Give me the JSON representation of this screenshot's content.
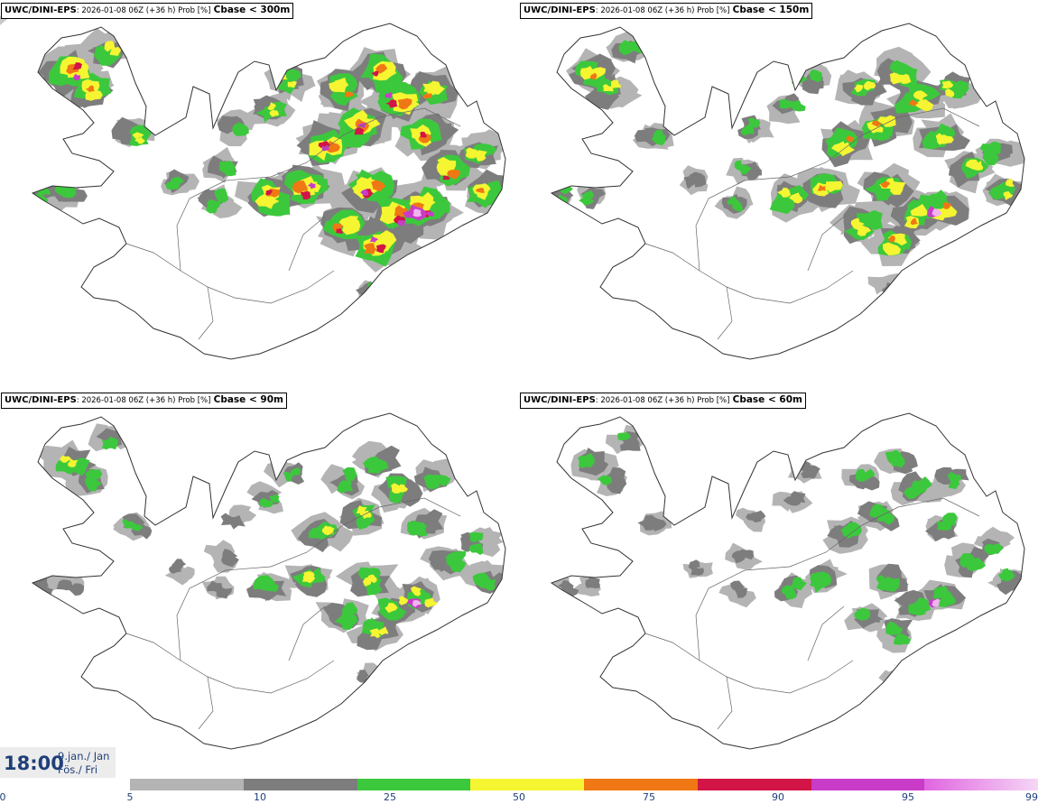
{
  "panels": [
    {
      "model": "UWC/DINI-EPS",
      "meta": ": 2026-01-08 06Z (+36 h) Prob [%]",
      "threshold": "Cbase < 300m",
      "intensity": 1.0
    },
    {
      "model": "UWC/DINI-EPS",
      "meta": ": 2026-01-08 06Z (+36 h) Prob [%]",
      "threshold": "Cbase < 150m",
      "intensity": 0.8
    },
    {
      "model": "UWC/DINI-EPS",
      "meta": ": 2026-01-08 06Z (+36 h) Prob [%]",
      "threshold": "Cbase < 90m",
      "intensity": 0.65
    },
    {
      "model": "UWC/DINI-EPS",
      "meta": ": 2026-01-08 06Z (+36 h) Prob [%]",
      "threshold": "Cbase < 60m",
      "intensity": 0.55
    }
  ],
  "timestamp": {
    "time": "18:00",
    "date_line1": "9.jan./ Jan",
    "date_line2": "Fös./ Fri"
  },
  "colorbar": {
    "labels": [
      "0",
      "5",
      "10",
      "25",
      "50",
      "75",
      "90",
      "95",
      "99"
    ],
    "segments": [
      {
        "from": 5,
        "to": 10,
        "color": "#b4b4b4"
      },
      {
        "from": 10,
        "to": 25,
        "color": "#7d7d7d"
      },
      {
        "from": 25,
        "to": 50,
        "color": "#3cc83c"
      },
      {
        "from": 50,
        "to": 75,
        "color": "#f5f532"
      },
      {
        "from": 75,
        "to": 90,
        "color": "#f07814"
      },
      {
        "from": 90,
        "to": 95,
        "color": "#d21446"
      },
      {
        "from": 95,
        "to": 99,
        "color": "#c83cc8"
      },
      {
        "from": 99,
        "to": 100,
        "color": "#f0b4f0"
      }
    ]
  },
  "icons": {
    "panel_corner": "corner-triangle-icon"
  }
}
